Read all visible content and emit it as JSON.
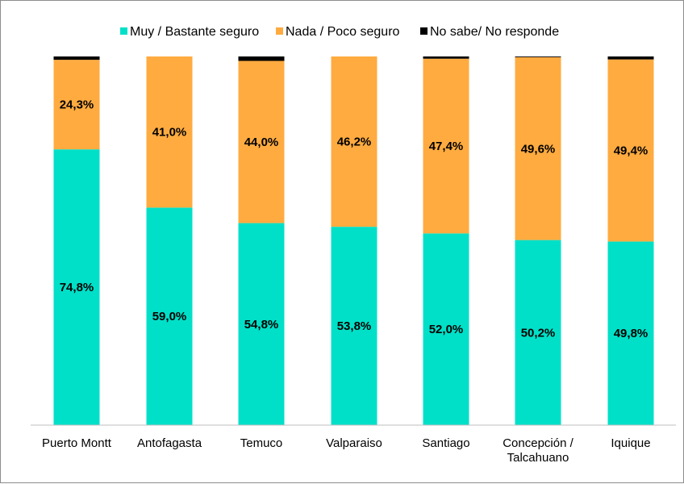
{
  "chart_data": {
    "type": "bar",
    "stacked": true,
    "percent_stacked": true,
    "title": "",
    "xlabel": "",
    "ylabel": "",
    "ylim": [
      0,
      100
    ],
    "grid": false,
    "legend_position": "top",
    "categories": [
      "Puerto Montt",
      "Antofagasta",
      "Temuco",
      "Valparaiso",
      "Santiago",
      "Concepción / Talcahuano",
      "Iquique"
    ],
    "series": [
      {
        "name": "Muy / Bastante seguro",
        "color": "#00e0c8",
        "values": [
          74.8,
          59.0,
          54.8,
          53.8,
          52.0,
          50.2,
          49.8
        ],
        "labels": [
          "74,8%",
          "59,0%",
          "54,8%",
          "53,8%",
          "52,0%",
          "50,2%",
          "49,8%"
        ]
      },
      {
        "name": "Nada / Poco seguro",
        "color": "#ffab40",
        "values": [
          24.3,
          41.0,
          44.0,
          46.2,
          47.4,
          49.6,
          49.4
        ],
        "labels": [
          "24,3%",
          "41,0%",
          "44,0%",
          "46,2%",
          "47,4%",
          "49,6%",
          "49,4%"
        ]
      },
      {
        "name": "No sabe/ No responde",
        "color": "#000000",
        "values": [
          0.9,
          0.0,
          1.2,
          0.0,
          0.6,
          0.2,
          0.8
        ],
        "labels": []
      }
    ]
  }
}
